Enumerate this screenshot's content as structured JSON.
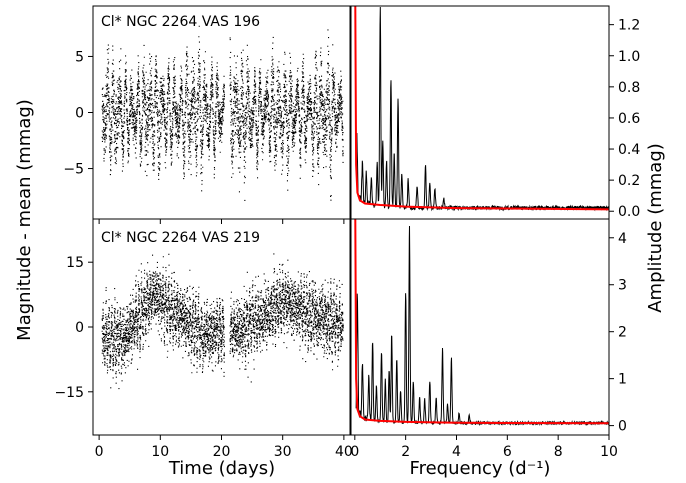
{
  "figure": {
    "ylabel_left": "Magnitude - mean (mmag)",
    "ylabel_right": "Amplitude (mmag)",
    "xlabel_left": "Time (days)",
    "xlabel_right": "Frequency (d⁻¹)",
    "colors": {
      "light_curve": "#000000",
      "periodogram": "#000000",
      "noise": "#ff0000",
      "frame": "#000000"
    }
  },
  "chart_data": [
    {
      "type": "scatter",
      "panel": "top-left",
      "annotation": "Cl* NGC 2264 VAS 196",
      "xlim": [
        -1.0,
        41.0
      ],
      "ylim": [
        -9.5,
        9.5
      ],
      "xticks": [
        0,
        10,
        20,
        30,
        40
      ],
      "yticks": [
        -5,
        0,
        5
      ],
      "ytick_labels": [
        "−5",
        "0",
        "5"
      ],
      "time_span": [
        0.4,
        39.8
      ],
      "data_gap": [
        20.4,
        21.3
      ],
      "typical_range": [
        -6.5,
        6.5
      ],
      "max_excursion": 7.8
    },
    {
      "type": "scatter",
      "panel": "bottom-left",
      "annotation": "Cl* NGC 2264 VAS 219",
      "xlim": [
        -1.0,
        41.0
      ],
      "ylim": [
        -25,
        25
      ],
      "xticks": [
        0,
        10,
        20,
        30,
        40
      ],
      "xtick_labels": [
        "0",
        "10",
        "20",
        "30",
        "40"
      ],
      "yticks": [
        -15,
        0,
        15
      ],
      "ytick_labels": [
        "−15",
        "0",
        "15"
      ],
      "time_span": [
        0.4,
        39.8
      ],
      "data_gap": [
        20.4,
        21.3
      ],
      "trend": [
        [
          0.5,
          -2
        ],
        [
          4,
          -3
        ],
        [
          7,
          4
        ],
        [
          9,
          8
        ],
        [
          11,
          5
        ],
        [
          14,
          2
        ],
        [
          17,
          -2
        ],
        [
          20,
          -1
        ],
        [
          22,
          -1
        ],
        [
          24,
          0
        ],
        [
          27,
          3
        ],
        [
          30,
          6
        ],
        [
          33,
          4
        ],
        [
          36,
          2
        ],
        [
          39,
          1
        ]
      ],
      "scatter_amplitude": 8
    },
    {
      "type": "line",
      "panel": "top-right",
      "xlim": [
        -0.15,
        10.0
      ],
      "ylim": [
        -0.05,
        1.32
      ],
      "yticks": [
        0.0,
        0.2,
        0.4,
        0.6,
        0.8,
        1.0,
        1.2
      ],
      "ytick_labels": [
        "0.0",
        "0.2",
        "0.4",
        "0.6",
        "0.8",
        "1.0",
        "1.2"
      ],
      "series": [
        {
          "role": "amplitude spectrum",
          "peaks": [
            [
              0.08,
              0.37
            ],
            [
              0.3,
              0.25
            ],
            [
              0.45,
              0.2
            ],
            [
              0.65,
              0.18
            ],
            [
              0.88,
              0.28
            ],
            [
              1.0,
              1.28
            ],
            [
              1.1,
              0.42
            ],
            [
              1.25,
              0.3
            ],
            [
              1.42,
              0.83
            ],
            [
              1.55,
              0.35
            ],
            [
              1.7,
              0.7
            ],
            [
              1.85,
              0.22
            ],
            [
              2.1,
              0.18
            ],
            [
              2.45,
              0.14
            ],
            [
              2.78,
              0.27
            ],
            [
              2.95,
              0.17
            ],
            [
              3.15,
              0.13
            ],
            [
              3.5,
              0.06
            ]
          ],
          "noise_floor": 0.02
        },
        {
          "role": "noise level",
          "points": [
            [
              0.02,
              1.32
            ],
            [
              0.05,
              0.3
            ],
            [
              0.1,
              0.12
            ],
            [
              0.2,
              0.07
            ],
            [
              0.4,
              0.05
            ],
            [
              1.0,
              0.04
            ],
            [
              2.0,
              0.03
            ],
            [
              4.0,
              0.02
            ],
            [
              10.0,
              0.012
            ]
          ]
        }
      ]
    },
    {
      "type": "line",
      "panel": "bottom-right",
      "xlim": [
        -0.15,
        10.0
      ],
      "ylim": [
        -0.2,
        4.4
      ],
      "xticks": [
        0,
        2,
        4,
        6,
        8,
        10
      ],
      "xtick_labels": [
        "0",
        "2",
        "4",
        "6",
        "8",
        "10"
      ],
      "yticks": [
        0,
        1,
        2,
        3,
        4
      ],
      "ytick_labels": [
        "0",
        "1",
        "2",
        "3",
        "4"
      ],
      "series": [
        {
          "role": "amplitude spectrum",
          "peaks": [
            [
              0.1,
              2.5
            ],
            [
              0.3,
              1.2
            ],
            [
              0.55,
              0.95
            ],
            [
              0.7,
              1.7
            ],
            [
              0.85,
              0.75
            ],
            [
              1.05,
              1.5
            ],
            [
              1.2,
              0.9
            ],
            [
              1.35,
              1.15
            ],
            [
              1.45,
              1.9
            ],
            [
              1.65,
              1.35
            ],
            [
              1.8,
              0.7
            ],
            [
              2.0,
              2.8
            ],
            [
              2.15,
              4.2
            ],
            [
              2.3,
              0.9
            ],
            [
              2.55,
              0.55
            ],
            [
              2.75,
              0.5
            ],
            [
              2.95,
              0.9
            ],
            [
              3.2,
              0.55
            ],
            [
              3.45,
              1.6
            ],
            [
              3.65,
              0.4
            ],
            [
              3.8,
              1.4
            ],
            [
              4.1,
              0.2
            ],
            [
              4.5,
              0.15
            ]
          ],
          "noise_floor": 0.05
        },
        {
          "role": "noise level",
          "points": [
            [
              0.02,
              4.4
            ],
            [
              0.05,
              1.0
            ],
            [
              0.1,
              0.35
            ],
            [
              0.2,
              0.2
            ],
            [
              0.4,
              0.13
            ],
            [
              1.0,
              0.1
            ],
            [
              2.0,
              0.08
            ],
            [
              4.0,
              0.06
            ],
            [
              10.0,
              0.05
            ]
          ]
        }
      ]
    }
  ]
}
